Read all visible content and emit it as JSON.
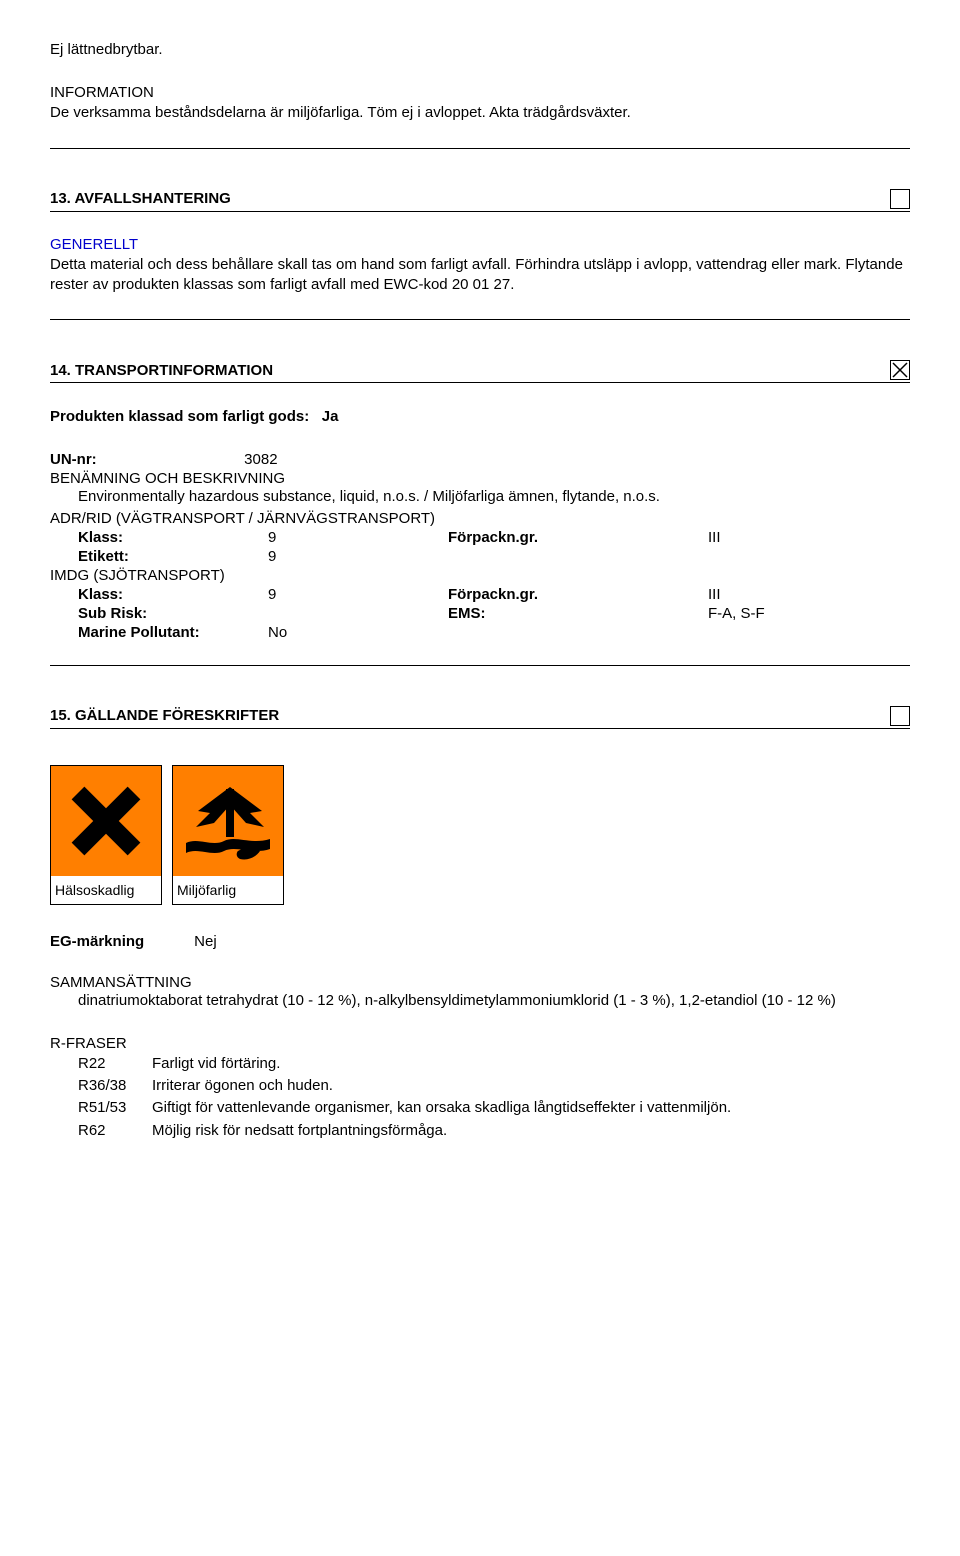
{
  "top": {
    "line1": "Ej lättnedbrytbar.",
    "info_label": "INFORMATION",
    "info_text": "De verksamma beståndsdelarna är miljöfarliga. Töm ej i avloppet. Akta trädgårdsväxter."
  },
  "s13": {
    "title": "13. AVFALLSHANTERING",
    "icon": "empty",
    "generellt_label": "GENERELLT",
    "generellt_text": "Detta material och dess behållare skall tas om hand som farligt avfall. Förhindra utsläpp i avlopp, vattendrag eller mark. Flytande rester av produkten klassas som farligt avfall med EWC-kod 20 01 27."
  },
  "s14": {
    "title": "14. TRANSPORTINFORMATION",
    "icon": "cross",
    "classed_label": "Produkten klassad som farligt gods:",
    "classed_value": "Ja",
    "un_label": "UN-nr:",
    "un_value": "3082",
    "benamning_label": "BENÄMNING OCH BESKRIVNING",
    "benamning_text": "Environmentally hazardous substance, liquid, n.o.s. / Miljöfarliga ämnen, flytande, n.o.s.",
    "adr_label": "ADR/RID (VÄGTRANSPORT / JÄRNVÄGSTRANSPORT)",
    "adr": {
      "klass_label": "Klass:",
      "klass_value": "9",
      "forpack_label": "Förpackn.gr.",
      "forpack_value": "III",
      "etikett_label": "Etikett:",
      "etikett_value": "9"
    },
    "imdg_label": "IMDG (SJÖTRANSPORT)",
    "imdg": {
      "klass_label": "Klass:",
      "klass_value": "9",
      "forpack_label": "Förpackn.gr.",
      "forpack_value": "III",
      "sub_label": "Sub Risk:",
      "sub_value": "",
      "ems_label": "EMS:",
      "ems_value": "F-A, S-F",
      "marine_label": "Marine Pollutant:",
      "marine_value": "No"
    }
  },
  "s15": {
    "title": "15. GÄLLANDE FÖRESKRIFTER",
    "icon": "empty",
    "hazard1_caption": "Hälsoskadlig",
    "hazard2_caption": "Miljöfarlig",
    "hazard_bg": "#ff7f00",
    "eg_label": "EG-märkning",
    "eg_value": "Nej",
    "samman_label": "SAMMANSÄTTNING",
    "samman_text": "dinatriumoktaborat tetrahydrat (10 - 12 %), n-alkylbensyldimetylammoniumklorid (1 - 3 %), 1,2-etandiol (10 - 12 %)",
    "rfraser_label": "R-FRASER",
    "rphrases": [
      {
        "code": "R22",
        "text": "Farligt vid förtäring."
      },
      {
        "code": "R36/38",
        "text": "Irriterar ögonen och huden."
      },
      {
        "code": "R51/53",
        "text": "Giftigt för vattenlevande organismer, kan orsaka skadliga långtidseffekter i vattenmiljön."
      },
      {
        "code": "R62",
        "text": "Möjlig risk för nedsatt fortplantningsförmåga."
      }
    ]
  }
}
